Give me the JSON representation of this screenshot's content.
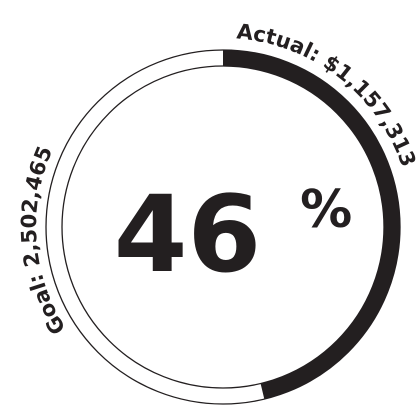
{
  "chart_data": {
    "type": "gauge",
    "percent_text": "46",
    "percent_sign": "%",
    "actual_label": "Actual: $1,157,313",
    "goal_label": "Goal: 2,502,465",
    "actual_value": 1157313,
    "goal_value": 2502465,
    "fill_fraction": 0.4625,
    "colors": {
      "fill": "#231f20",
      "track_stroke": "#231f20",
      "background": "#ffffff"
    }
  }
}
